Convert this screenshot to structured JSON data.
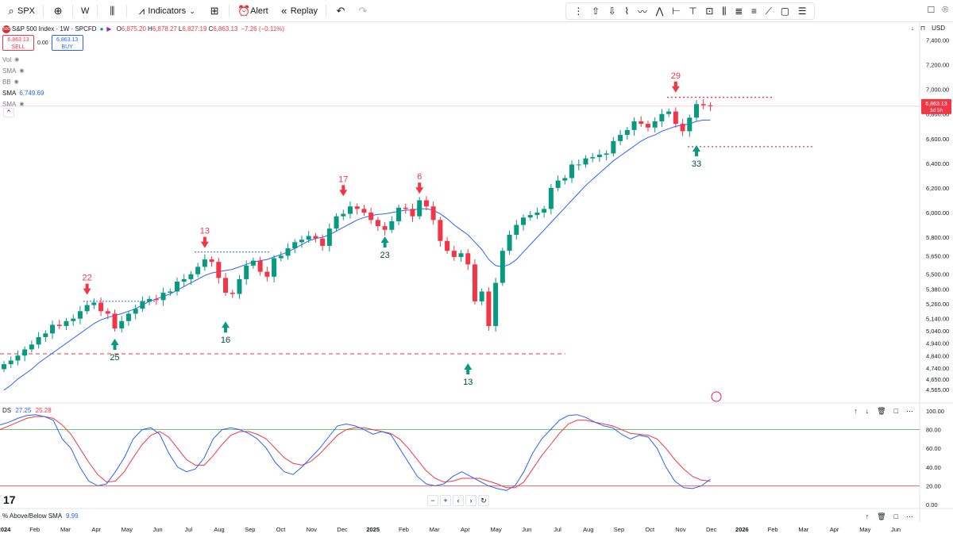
{
  "toolbar": {
    "symbol": "SPX",
    "interval": "W",
    "indicators_label": "Indicators",
    "alert_label": "Alert",
    "replay_label": "Replay"
  },
  "legend": {
    "title": "S&P 500 Index · 1W · SPCFD",
    "open_label": "O",
    "open": "6,875.20",
    "high_label": "H",
    "high": "6,878.27",
    "low_label": "L",
    "low": "6,827.19",
    "close_label": "C",
    "close": "6,863.13",
    "change": "−7.26 (−0.11%)",
    "sell_price": "6,863.13",
    "sell_label": "SELL",
    "spread": "0.00",
    "buy_price": "6,863.13",
    "buy_label": "BUY",
    "currency": "USD",
    "indicators": [
      {
        "name": "Vol"
      },
      {
        "name": "SMA"
      },
      {
        "name": "BB"
      },
      {
        "name": "SMA",
        "value": "6,749.69"
      },
      {
        "name": "SMA"
      }
    ]
  },
  "oscillator": {
    "name": "DS",
    "v1": "27.25",
    "v2": "25.28"
  },
  "indicator2": {
    "name": "% Above/Below SMA",
    "value": "9.99"
  },
  "price_badge": {
    "price": "6,863.13",
    "countdown": "3d 5h"
  },
  "colors": {
    "up": "#089981",
    "down": "#f23645",
    "sma": "#2962ff",
    "osc_fast": "#2962ff",
    "osc_slow": "#f23645"
  },
  "chart_data": {
    "type": "candlestick",
    "price_axis": [
      "7,400.00",
      "7,200.00",
      "7,000.00",
      "6,800.00",
      "6,600.00",
      "6,400.00",
      "6,200.00",
      "6,000.00",
      "5,800.00",
      "5,650.00",
      "5,500.00",
      "5,380.00",
      "5,260.00",
      "5,140.00",
      "5,040.00",
      "4,940.00",
      "4,840.00",
      "4,740.00",
      "4,650.00",
      "4,565.00"
    ],
    "price_axis_values": [
      7400,
      7200,
      7000,
      6800,
      6600,
      6400,
      6200,
      6000,
      5800,
      5650,
      5500,
      5380,
      5260,
      5140,
      5040,
      4940,
      4840,
      4740,
      4650,
      4565
    ],
    "x_labels": [
      "2024",
      "Feb",
      "Mar",
      "Apr",
      "May",
      "Jun",
      "Jul",
      "Aug",
      "Sep",
      "Oct",
      "Nov",
      "Dec",
      "2025",
      "Feb",
      "Mar",
      "Apr",
      "May",
      "Jun",
      "Jul",
      "Aug",
      "Sep",
      "Oct",
      "Nov",
      "Dec",
      "2026",
      "Feb",
      "Mar",
      "Apr",
      "May",
      "Jun"
    ],
    "closes": [
      4770,
      4800,
      4840,
      4890,
      4930,
      4990,
      5020,
      5090,
      5080,
      5120,
      5140,
      5200,
      5250,
      5270,
      5200,
      5180,
      5060,
      5120,
      5180,
      5220,
      5280,
      5300,
      5290,
      5350,
      5360,
      5440,
      5460,
      5500,
      5560,
      5620,
      5600,
      5470,
      5350,
      5340,
      5460,
      5570,
      5610,
      5520,
      5480,
      5630,
      5650,
      5710,
      5760,
      5780,
      5810,
      5790,
      5730,
      5870,
      5970,
      5990,
      6050,
      6030,
      6000,
      5940,
      5890,
      5860,
      5930,
      6040,
      6030,
      5970,
      6100,
      6050,
      5940,
      5770,
      5690,
      5640,
      5670,
      5580,
      5280,
      5360,
      5080,
      5430,
      5690,
      5820,
      5900,
      5960,
      5980,
      6000,
      6030,
      6200,
      6260,
      6280,
      6390,
      6390,
      6440,
      6450,
      6470,
      6480,
      6580,
      6630,
      6670,
      6740,
      6720,
      6690,
      6740,
      6800,
      6820,
      6720,
      6660,
      6770,
      6880,
      6870,
      6863
    ],
    "sma": [
      4560,
      4600,
      4650,
      4690,
      4730,
      4780,
      4820,
      4860,
      4900,
      4940,
      4980,
      5020,
      5060,
      5100,
      5130,
      5150,
      5165,
      5180,
      5200,
      5220,
      5250,
      5280,
      5300,
      5320,
      5340,
      5370,
      5400,
      5430,
      5460,
      5490,
      5510,
      5520,
      5530,
      5540,
      5560,
      5580,
      5600,
      5610,
      5620,
      5640,
      5660,
      5680,
      5710,
      5740,
      5770,
      5790,
      5800,
      5820,
      5850,
      5880,
      5910,
      5940,
      5960,
      5975,
      5985,
      5990,
      6000,
      6010,
      6020,
      6020,
      6030,
      6030,
      6020,
      5990,
      5950,
      5900,
      5860,
      5820,
      5760,
      5700,
      5620,
      5570,
      5560,
      5580,
      5620,
      5680,
      5740,
      5800,
      5860,
      5920,
      5980,
      6040,
      6100,
      6160,
      6220,
      6270,
      6320,
      6370,
      6420,
      6460,
      6500,
      6540,
      6580,
      6610,
      6630,
      6660,
      6680,
      6700,
      6710,
      6720,
      6740,
      6750,
      6750
    ],
    "oscillator_fast": [
      85,
      88,
      92,
      95,
      96,
      94,
      90,
      70,
      60,
      40,
      25,
      20,
      22,
      35,
      50,
      70,
      80,
      82,
      75,
      55,
      40,
      35,
      38,
      50,
      70,
      80,
      82,
      80,
      76,
      70,
      60,
      45,
      35,
      32,
      40,
      50,
      60,
      72,
      84,
      86,
      84,
      80,
      75,
      78,
      75,
      60,
      45,
      30,
      22,
      20,
      22,
      30,
      35,
      30,
      25,
      20,
      17,
      15,
      20,
      35,
      55,
      70,
      80,
      90,
      95,
      96,
      93,
      88,
      84,
      82,
      75,
      70,
      74,
      72,
      60,
      40,
      25,
      18,
      17,
      20,
      27
    ],
    "oscillator_slow": [
      80,
      84,
      88,
      92,
      94,
      94,
      92,
      85,
      75,
      60,
      45,
      32,
      24,
      25,
      35,
      50,
      64,
      74,
      78,
      72,
      60,
      48,
      42,
      42,
      52,
      64,
      74,
      78,
      78,
      75,
      70,
      60,
      50,
      44,
      42,
      46,
      54,
      64,
      74,
      80,
      82,
      82,
      80,
      78,
      76,
      70,
      60,
      48,
      36,
      28,
      24,
      25,
      28,
      28,
      28,
      25,
      22,
      18,
      18,
      24,
      38,
      52,
      64,
      76,
      86,
      90,
      90,
      88,
      86,
      84,
      80,
      76,
      75,
      74,
      70,
      60,
      48,
      38,
      30,
      26,
      25
    ]
  },
  "annotations": [
    {
      "text": "22",
      "dir": "down"
    },
    {
      "text": "25",
      "dir": "up"
    },
    {
      "text": "13",
      "dir": "down"
    },
    {
      "text": "16",
      "dir": "up"
    },
    {
      "text": "17",
      "dir": "down"
    },
    {
      "text": "23",
      "dir": "up"
    },
    {
      "text": "6",
      "dir": "down"
    },
    {
      "text": "13",
      "dir": "up"
    },
    {
      "text": "29",
      "dir": "down"
    },
    {
      "text": "33",
      "dir": "up"
    }
  ],
  "osc_axis": [
    "100.00",
    "80.00",
    "60.00",
    "40.00",
    "20.00",
    "0.00"
  ],
  "osc_axis_values": [
    100,
    80,
    60,
    40,
    20,
    0
  ],
  "osc_levels": [
    80,
    20
  ]
}
